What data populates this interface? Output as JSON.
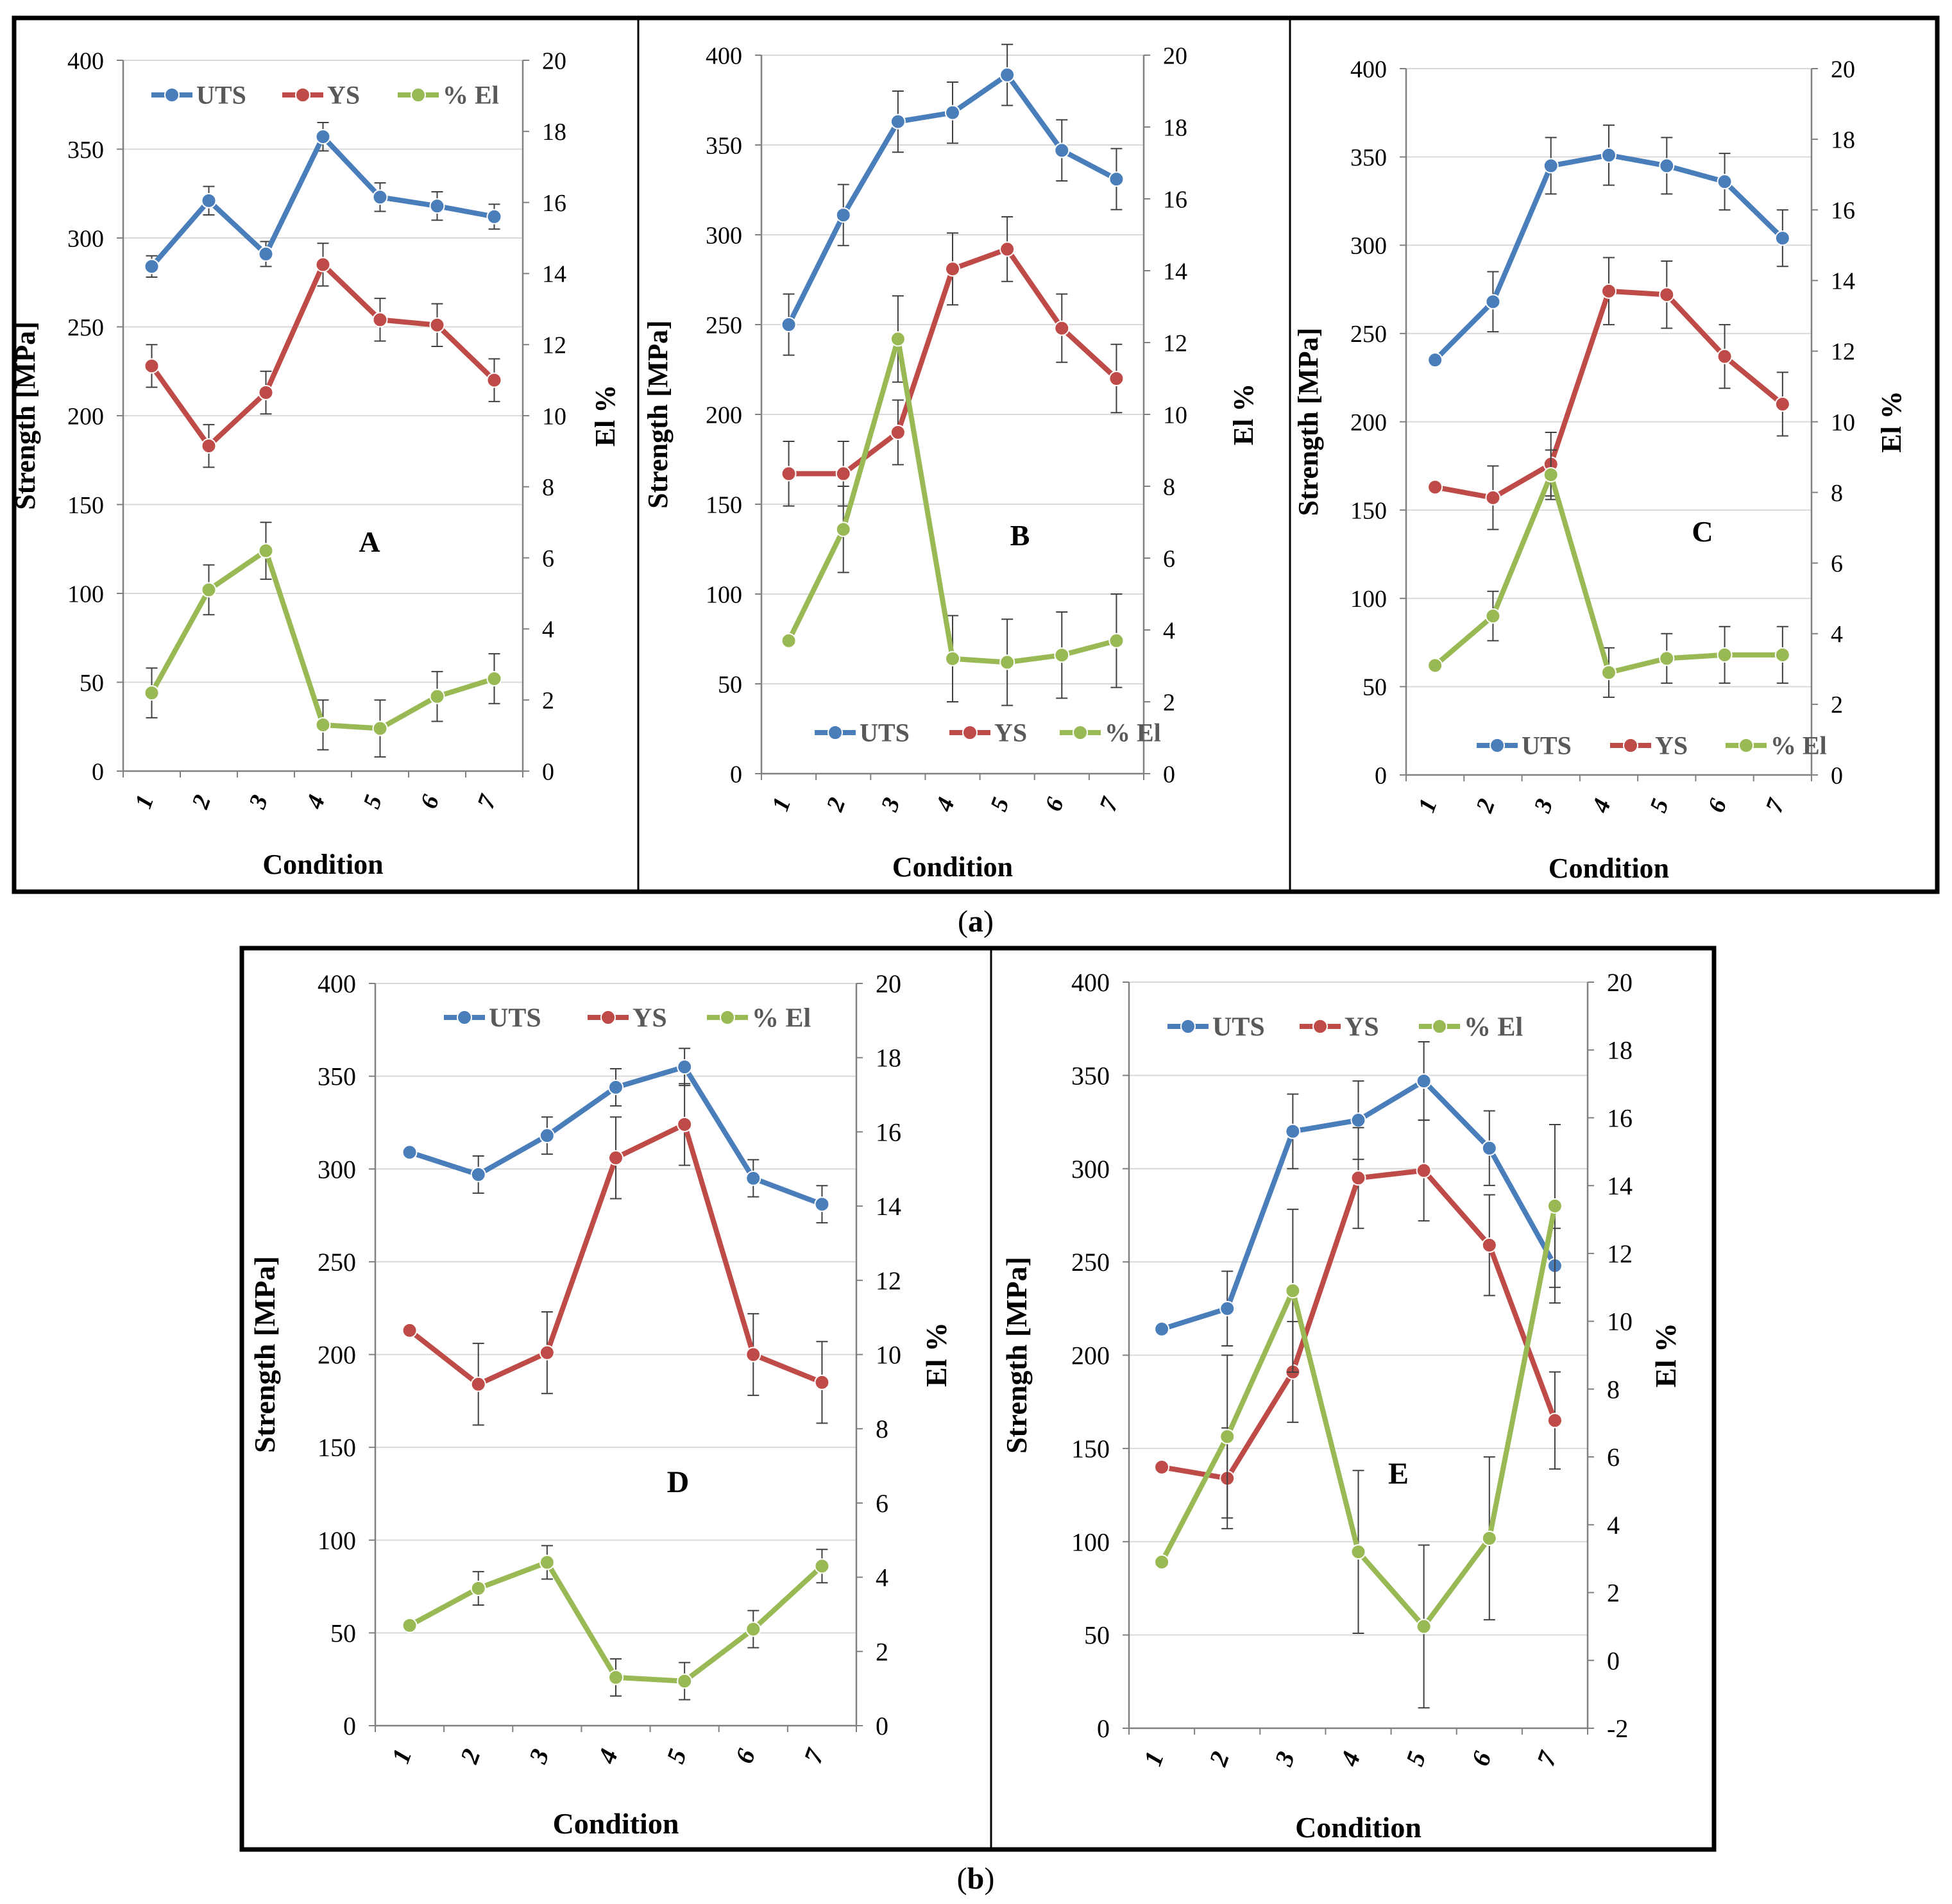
{
  "figure": {
    "caption_a": "(a)",
    "caption_a_letter": "a",
    "caption_b": "(b)",
    "caption_b_letter": "b"
  },
  "chart_data": [
    {
      "id": "A",
      "type": "line",
      "panel_label": "A",
      "categories": [
        "1",
        "2",
        "3",
        "4",
        "5",
        "6",
        "7"
      ],
      "xlabel": "Condition",
      "ylabel": "Strength [MPa]",
      "y2label": "El %",
      "ylim": [
        0,
        400
      ],
      "y2lim": [
        0,
        20
      ],
      "yticks": [
        "0",
        "50",
        "100",
        "150",
        "200",
        "250",
        "300",
        "350",
        "400"
      ],
      "y2ticks": [
        "0",
        "2",
        "4",
        "6",
        "8",
        "10",
        "12",
        "14",
        "16",
        "18",
        "20"
      ],
      "legend_position": "top",
      "series": [
        {
          "name": "UTS",
          "color": "#4a7ebb",
          "axis": "left",
          "values": [
            284,
            321,
            291,
            357,
            323,
            318,
            312
          ],
          "errors": [
            6,
            8,
            7,
            8,
            8,
            8,
            7
          ]
        },
        {
          "name": "YS",
          "color": "#be4b48",
          "axis": "left",
          "values": [
            228,
            183,
            213,
            285,
            254,
            251,
            220
          ],
          "errors": [
            12,
            12,
            12,
            12,
            12,
            12,
            12
          ]
        },
        {
          "name": "% El",
          "color": "#98b954",
          "axis": "right",
          "values": [
            2.2,
            5.1,
            6.2,
            1.3,
            1.2,
            2.1,
            2.6
          ],
          "errors": [
            0.7,
            0.7,
            0.8,
            0.7,
            0.8,
            0.7,
            0.7
          ]
        }
      ]
    },
    {
      "id": "B",
      "type": "line",
      "panel_label": "B",
      "categories": [
        "1",
        "2",
        "3",
        "4",
        "5",
        "6",
        "7"
      ],
      "xlabel": "Condition",
      "ylabel": "Strength [MPa]",
      "y2label": "El %",
      "ylim": [
        0,
        400
      ],
      "y2lim": [
        0,
        20
      ],
      "yticks": [
        "0",
        "50",
        "100",
        "150",
        "200",
        "250",
        "300",
        "350",
        "400"
      ],
      "y2ticks": [
        "0",
        "2",
        "4",
        "6",
        "8",
        "10",
        "12",
        "14",
        "16",
        "18",
        "20"
      ],
      "legend_position": "bottom",
      "series": [
        {
          "name": "UTS",
          "color": "#4a7ebb",
          "axis": "left",
          "values": [
            250,
            311,
            363,
            368,
            389,
            347,
            331
          ],
          "errors": [
            17,
            17,
            17,
            17,
            17,
            17,
            17
          ]
        },
        {
          "name": "YS",
          "color": "#be4b48",
          "axis": "left",
          "values": [
            167,
            167,
            190,
            281,
            292,
            248,
            220
          ],
          "errors": [
            18,
            18,
            18,
            20,
            18,
            19,
            19
          ]
        },
        {
          "name": "% El",
          "color": "#98b954",
          "axis": "right",
          "values": [
            3.7,
            6.8,
            12.1,
            3.2,
            3.1,
            3.3,
            3.7
          ],
          "errors": [
            0,
            1.2,
            1.2,
            1.2,
            1.2,
            1.2,
            1.3
          ]
        }
      ]
    },
    {
      "id": "C",
      "type": "line",
      "panel_label": "C",
      "categories": [
        "1",
        "2",
        "3",
        "4",
        "5",
        "6",
        "7"
      ],
      "xlabel": "Condition",
      "ylabel": "Strength [MPa]",
      "y2label": "El %",
      "ylim": [
        0,
        400
      ],
      "y2lim": [
        0,
        20
      ],
      "yticks": [
        "0",
        "50",
        "100",
        "150",
        "200",
        "250",
        "300",
        "350",
        "400"
      ],
      "y2ticks": [
        "0",
        "2",
        "4",
        "6",
        "8",
        "10",
        "12",
        "14",
        "16",
        "18",
        "20"
      ],
      "legend_position": "bottom",
      "series": [
        {
          "name": "UTS",
          "color": "#4a7ebb",
          "axis": "left",
          "values": [
            235,
            268,
            345,
            351,
            345,
            336,
            304
          ],
          "errors": [
            0,
            17,
            16,
            17,
            16,
            16,
            16
          ]
        },
        {
          "name": "YS",
          "color": "#be4b48",
          "axis": "left",
          "values": [
            163,
            157,
            176,
            274,
            272,
            237,
            210
          ],
          "errors": [
            0,
            18,
            18,
            19,
            19,
            18,
            18
          ]
        },
        {
          "name": "% El",
          "color": "#98b954",
          "axis": "right",
          "values": [
            3.1,
            4.5,
            8.5,
            2.9,
            3.3,
            3.4,
            3.4
          ],
          "errors": [
            0,
            0.7,
            0.7,
            0.7,
            0.7,
            0.8,
            0.8
          ]
        }
      ]
    },
    {
      "id": "D",
      "type": "line",
      "panel_label": "D",
      "categories": [
        "1",
        "2",
        "3",
        "4",
        "5",
        "6",
        "7"
      ],
      "xlabel": "Condition",
      "ylabel": "Strength [MPa]",
      "y2label": "El %",
      "ylim": [
        0,
        400
      ],
      "y2lim": [
        0,
        20
      ],
      "yticks": [
        "0",
        "50",
        "100",
        "150",
        "200",
        "250",
        "300",
        "350",
        "400"
      ],
      "y2ticks": [
        "0",
        "2",
        "4",
        "6",
        "8",
        "10",
        "12",
        "14",
        "16",
        "18",
        "20"
      ],
      "legend_position": "top",
      "series": [
        {
          "name": "UTS",
          "color": "#4a7ebb",
          "axis": "left",
          "values": [
            309,
            297,
            318,
            344,
            355,
            295,
            281
          ],
          "errors": [
            0,
            10,
            10,
            10,
            10,
            10,
            10
          ]
        },
        {
          "name": "YS",
          "color": "#be4b48",
          "axis": "left",
          "values": [
            213,
            184,
            201,
            306,
            324,
            200,
            185
          ],
          "errors": [
            0,
            22,
            22,
            22,
            22,
            22,
            22
          ]
        },
        {
          "name": "% El",
          "color": "#98b954",
          "axis": "right",
          "values": [
            2.7,
            3.7,
            4.4,
            1.3,
            1.2,
            2.6,
            4.3
          ],
          "errors": [
            0,
            0.45,
            0.45,
            0.5,
            0.5,
            0.5,
            0.45
          ]
        }
      ]
    },
    {
      "id": "E",
      "type": "line",
      "panel_label": "E",
      "categories": [
        "1",
        "2",
        "3",
        "4",
        "5",
        "6",
        "7"
      ],
      "xlabel": "Condition",
      "ylabel": "Strength [MPa]",
      "y2label": "El %",
      "ylim": [
        0,
        400
      ],
      "y2lim": [
        -2,
        20
      ],
      "yticks": [
        "0",
        "50",
        "100",
        "150",
        "200",
        "250",
        "300",
        "350",
        "400"
      ],
      "y2ticks": [
        "-2",
        "0",
        "2",
        "4",
        "6",
        "8",
        "10",
        "12",
        "14",
        "16",
        "18",
        "20"
      ],
      "legend_position": "top",
      "series": [
        {
          "name": "UTS",
          "color": "#4a7ebb",
          "axis": "left",
          "values": [
            214,
            225,
            320,
            326,
            347,
            311,
            248
          ],
          "errors": [
            0,
            20,
            20,
            21,
            21,
            20,
            20
          ]
        },
        {
          "name": "YS",
          "color": "#be4b48",
          "axis": "left",
          "values": [
            140,
            134,
            191,
            295,
            299,
            259,
            165
          ],
          "errors": [
            0,
            27,
            27,
            27,
            27,
            27,
            26
          ]
        },
        {
          "name": "% El",
          "color": "#98b954",
          "axis": "right",
          "values": [
            2.9,
            6.6,
            10.9,
            3.2,
            1,
            3.6,
            13.4
          ],
          "errors": [
            0,
            2.4,
            2.4,
            2.4,
            2.4,
            2.4,
            2.4
          ]
        }
      ]
    }
  ]
}
